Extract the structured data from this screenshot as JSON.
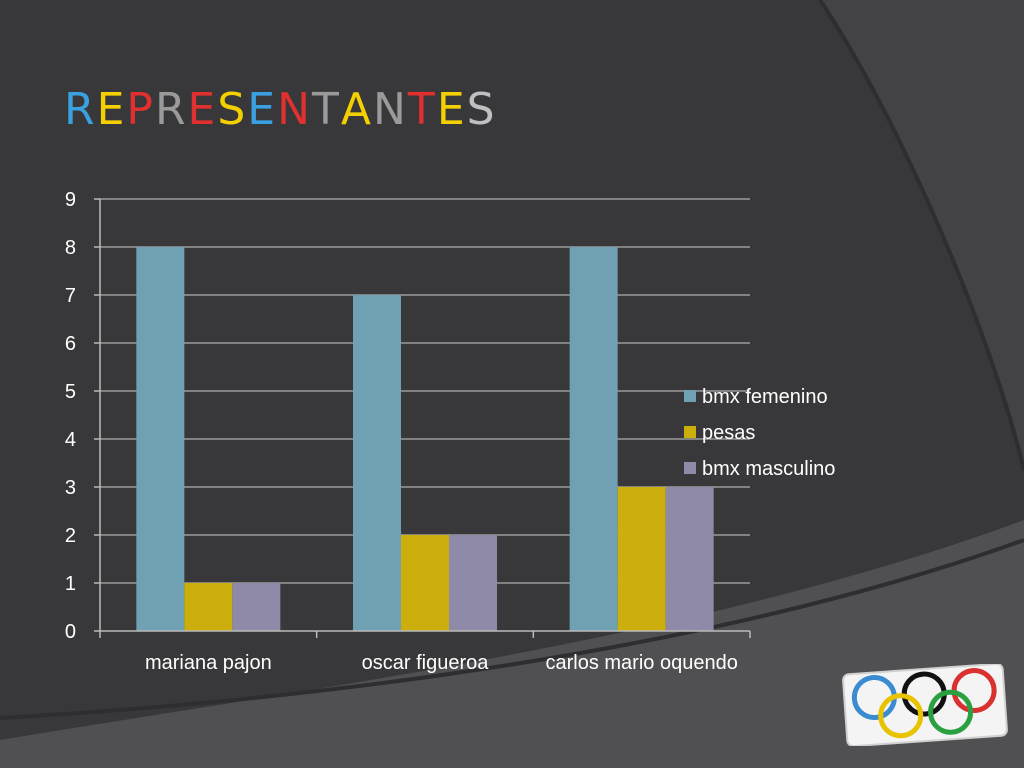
{
  "title": "REPRESENTANTES",
  "colors": {
    "title_letters": [
      "#3aa0e0",
      "#f5d000",
      "#e03030",
      "#9a9a9a",
      "#e03030",
      "#f5d000",
      "#3aa0e0",
      "#e03030",
      "#9a9a9a",
      "#f5d000",
      "#9a9a9a",
      "#e03030",
      "#f5d000",
      "#c0c0c0"
    ],
    "series": [
      "#6fa1b3",
      "#ccae0c",
      "#8f8aa8"
    ]
  },
  "chart_data": {
    "type": "bar",
    "categories": [
      "mariana pajon",
      "oscar figueroa",
      "carlos mario oquendo"
    ],
    "series": [
      {
        "name": "bmx femenino",
        "values": [
          8,
          7,
          8
        ]
      },
      {
        "name": "pesas",
        "values": [
          1,
          2,
          3
        ]
      },
      {
        "name": "bmx masculino",
        "values": [
          1,
          2,
          3
        ]
      }
    ],
    "yticks": [
      "0",
      "1",
      "2",
      "3",
      "4",
      "5",
      "6",
      "7",
      "8",
      "9"
    ],
    "ylim": [
      0,
      9
    ],
    "grid": true,
    "legend": "right"
  },
  "logo": {
    "icon": "olympic-rings-icon"
  }
}
